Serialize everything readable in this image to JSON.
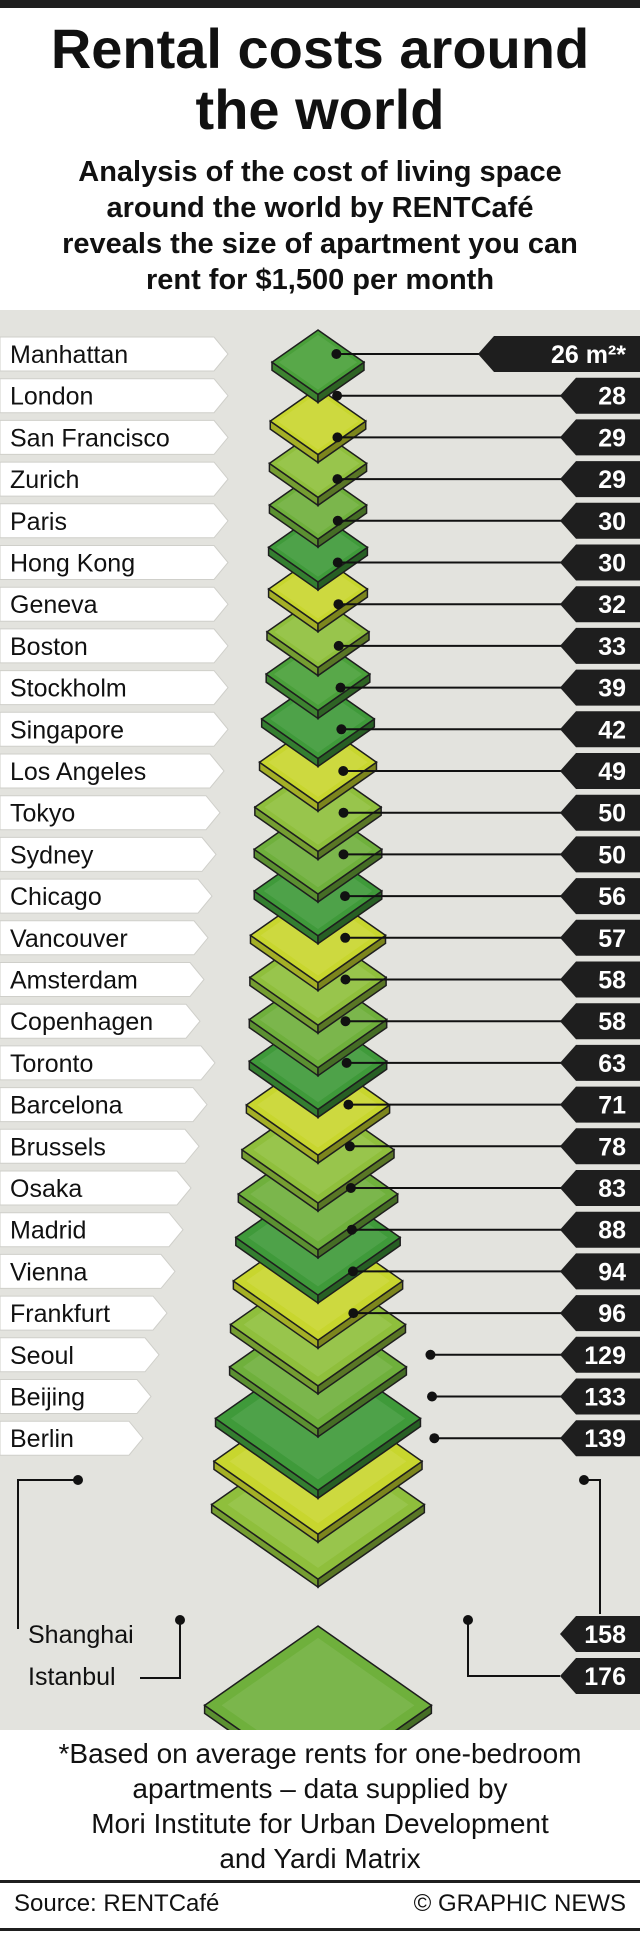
{
  "header": {
    "title_line1": "Rental costs around",
    "title_line2": "the world",
    "subtitle_line1": "Analysis of the cost of living space",
    "subtitle_line2": "around the world by RENTCafé",
    "subtitle_line3": "reveals the size of apartment you can",
    "subtitle_line4": "rent for $1,500 per month"
  },
  "chart_data": {
    "type": "bar",
    "categories": [
      "Manhattan",
      "London",
      "San Francisco",
      "Zurich",
      "Paris",
      "Hong Kong",
      "Geneva",
      "Boston",
      "Stockholm",
      "Singapore",
      "Los Angeles",
      "Tokyo",
      "Sydney",
      "Chicago",
      "Vancouver",
      "Amsterdam",
      "Copenhagen",
      "Toronto",
      "Barcelona",
      "Brussels",
      "Osaka",
      "Madrid",
      "Vienna",
      "Frankfurt",
      "Seoul",
      "Beijing",
      "Berlin",
      "Shanghai",
      "Istanbul"
    ],
    "values": [
      26,
      28,
      29,
      29,
      30,
      30,
      32,
      33,
      39,
      42,
      49,
      50,
      50,
      56,
      57,
      58,
      58,
      63,
      71,
      78,
      83,
      88,
      94,
      96,
      129,
      133,
      139,
      158,
      176
    ],
    "value_labels": [
      "26 m²*",
      "28",
      "29",
      "29",
      "30",
      "30",
      "32",
      "33",
      "39",
      "42",
      "49",
      "50",
      "50",
      "56",
      "57",
      "58",
      "58",
      "63",
      "71",
      "78",
      "83",
      "88",
      "94",
      "96",
      "129",
      "133",
      "139",
      "158",
      "176"
    ],
    "unit": "m²",
    "colors": [
      "#4aa03a",
      "#c8d62e",
      "#8fbf3c",
      "#6fb03c",
      "#3f9a3a",
      "#c8d62e",
      "#8fbf3c",
      "#4aa03a",
      "#3f9a3a",
      "#c8d62e",
      "#8fbf3c",
      "#6fb03c",
      "#3f9a3a",
      "#c8d62e",
      "#8fbf3c",
      "#6fb03c",
      "#3f9a3a",
      "#c8d62e",
      "#8fbf3c",
      "#6fb03c",
      "#3f9a3a",
      "#c8d62e",
      "#8fbf3c",
      "#6fb03c",
      "#3f9a3a",
      "#c8d62e",
      "#8fbf3c",
      "#6fb03c",
      "#3f9a3a"
    ]
  },
  "footnote": {
    "line1": "*Based on average rents for one-bedroom",
    "line2": "apartments – data supplied by",
    "line3": "Mori Institute for Urban Development",
    "line4": "and Yardi Matrix"
  },
  "footer": {
    "source": "Source: RENTCafé",
    "credit": "© GRAPHIC NEWS"
  }
}
